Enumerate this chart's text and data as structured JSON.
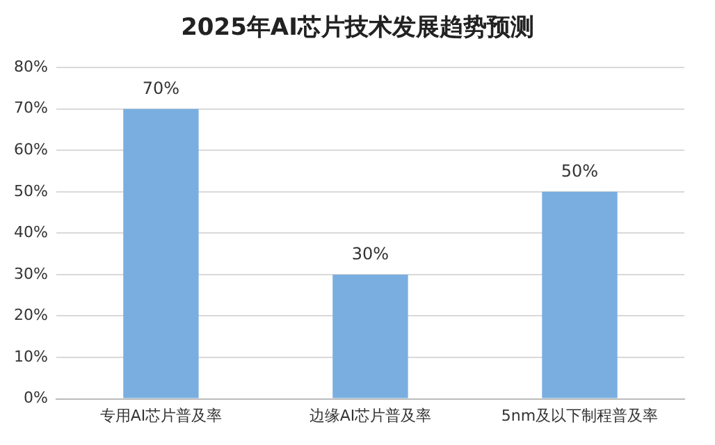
{
  "chart_data": {
    "type": "bar",
    "title": "2025年AI芯片技术发展趋势预测",
    "categories": [
      "专用AI芯片普及率",
      "边缘AI芯片普及率",
      "5nm及以下制程普及率"
    ],
    "values": [
      70,
      30,
      50
    ],
    "value_labels": [
      "70%",
      "30%",
      "50%"
    ],
    "color": "#7aaee0",
    "ylim": [
      0,
      80
    ],
    "yticks": [
      {
        "value": 0,
        "label": "0%"
      },
      {
        "value": 10,
        "label": "10%"
      },
      {
        "value": 20,
        "label": "20%"
      },
      {
        "value": 30,
        "label": "30%"
      },
      {
        "value": 40,
        "label": "40%"
      },
      {
        "value": 50,
        "label": "50%"
      },
      {
        "value": 60,
        "label": "60%"
      },
      {
        "value": 70,
        "label": "70%"
      },
      {
        "value": 80,
        "label": "80%"
      }
    ],
    "grid": "y",
    "legend": false
  }
}
